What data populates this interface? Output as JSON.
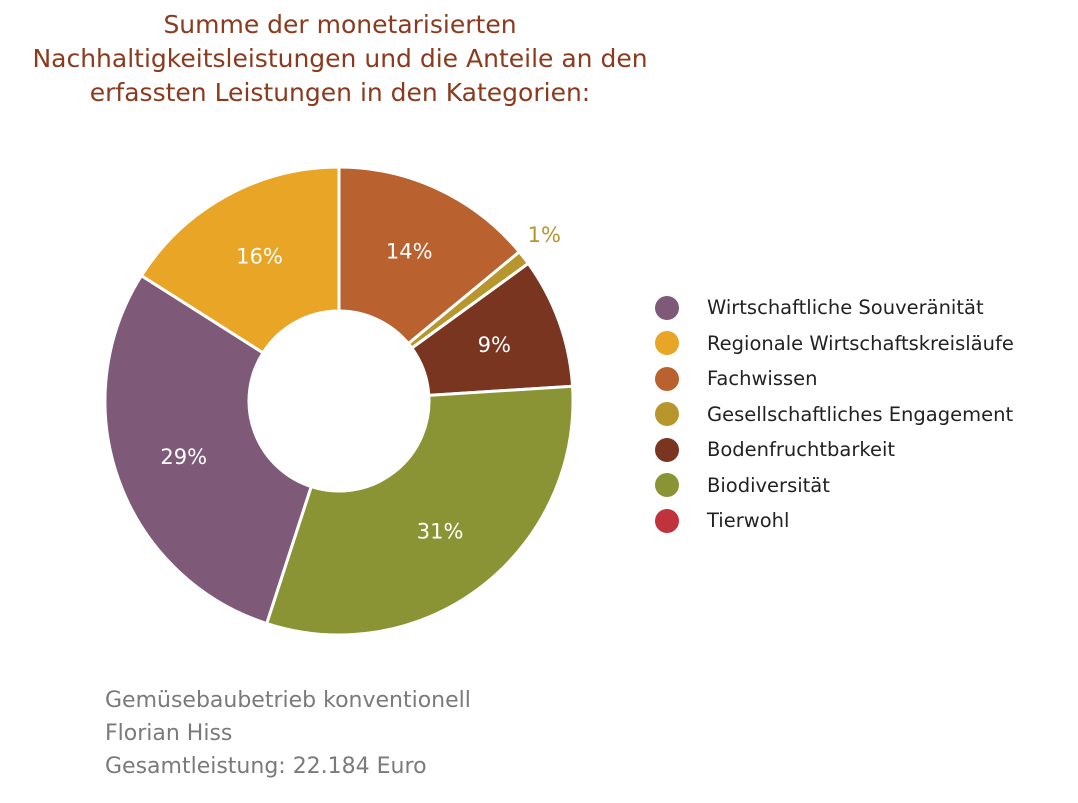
{
  "chart_data": {
    "type": "pie",
    "variant": "donut",
    "title_lines": [
      "Summe der monetarisierten",
      "Nachhaltigkeitsleistungen und die Anteile an den",
      "erfassten Leistungen in den Kategorien:"
    ],
    "legend_position": "right",
    "slices": [
      {
        "name": "Fachwissen",
        "value": 14,
        "label": "14%",
        "color": "#b9622f"
      },
      {
        "name": "Gesellschaftliches Engagement",
        "value": 1,
        "label": "1%",
        "color": "#b8962e"
      },
      {
        "name": "Bodenfruchtbarkeit",
        "value": 9,
        "label": "9%",
        "color": "#7a3520"
      },
      {
        "name": "Biodiversität",
        "value": 31,
        "label": "31%",
        "color": "#8a9434"
      },
      {
        "name": "Wirtschaftliche Souveränität",
        "value": 29,
        "label": "29%",
        "color": "#7e5a78"
      },
      {
        "name": "Regionale Wirtschaftskreisläufe",
        "value": 16,
        "label": "16%",
        "color": "#e8a526"
      }
    ],
    "legend": [
      {
        "name": "Wirtschaftliche Souveränität",
        "color": "#7e5a78"
      },
      {
        "name": "Regionale Wirtschaftskreisläufe",
        "color": "#e8a526"
      },
      {
        "name": "Fachwissen",
        "color": "#b9622f"
      },
      {
        "name": "Gesellschaftliches Engagement",
        "color": "#b8962e"
      },
      {
        "name": "Bodenfruchtbarkeit",
        "color": "#7a3520"
      },
      {
        "name": "Biodiversität",
        "color": "#8a9434"
      },
      {
        "name": "Tierwohl",
        "color": "#c0323c"
      }
    ]
  },
  "footer": {
    "line1": "Gemüsebaubetrieb konventionell",
    "line2": "Florian Hiss",
    "line3": "Gesamtleistung: 22.184 Euro"
  }
}
